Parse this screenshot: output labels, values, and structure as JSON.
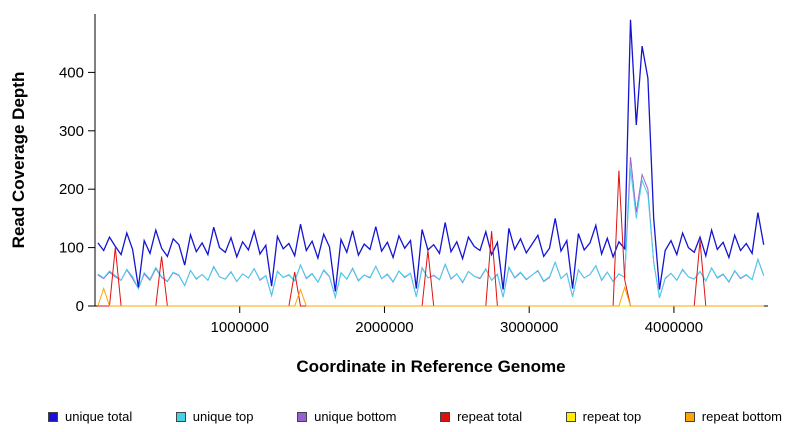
{
  "figure": {
    "xlabel": "Coordinate in Reference Genome",
    "ylabel": "Read Coverage Depth"
  },
  "chart_data": {
    "type": "line",
    "title": "",
    "xlabel": "Coordinate in Reference Genome",
    "ylabel": "Read Coverage Depth",
    "xlim": [
      0,
      4650000
    ],
    "ylim": [
      0,
      500
    ],
    "x_ticks": [
      1000000,
      2000000,
      3000000,
      4000000
    ],
    "x_tick_labels": [
      "1000000",
      "2000000",
      "3000000",
      "4000000"
    ],
    "y_ticks": [
      0,
      100,
      200,
      300,
      400
    ],
    "grid": false,
    "legend_position": "bottom",
    "x_start": 20000,
    "x_step": 40000,
    "background": "#ffffff",
    "series": [
      {
        "name": "repeat top",
        "color": "#FFEE00",
        "values": [
          0,
          0,
          0,
          0,
          0,
          0,
          0,
          0,
          0,
          0,
          0,
          0,
          0,
          0,
          0,
          0,
          0,
          0,
          0,
          0,
          0,
          0,
          0,
          0,
          0,
          0,
          0,
          0,
          0,
          0,
          0,
          0,
          0,
          0,
          0,
          0,
          0,
          0,
          0,
          0,
          0,
          0,
          0,
          0,
          0,
          0,
          0,
          0,
          0,
          0,
          0,
          0,
          0,
          0,
          0,
          0,
          0,
          0,
          0,
          0,
          0,
          0,
          0,
          0,
          0,
          0,
          0,
          0,
          0,
          0,
          0,
          0,
          0,
          0,
          0,
          0,
          0,
          0,
          0,
          0,
          0,
          0,
          0,
          0,
          0,
          0,
          0,
          0,
          0,
          0,
          0,
          0,
          0,
          0,
          0,
          0,
          0,
          0,
          0,
          0,
          0,
          0,
          0,
          0,
          0,
          0,
          0,
          0,
          0,
          0,
          0,
          0,
          0,
          0,
          0,
          0
        ]
      },
      {
        "name": "unique bottom",
        "color": "#9A5FD6",
        "values": [
          53,
          47,
          58,
          50,
          44,
          62,
          47,
          30,
          55,
          44,
          64,
          49,
          42,
          57,
          52,
          35,
          61,
          46,
          54,
          44,
          67,
          50,
          46,
          58,
          42,
          55,
          48,
          64,
          44,
          52,
          18,
          59,
          49,
          53,
          43,
          70,
          47,
          55,
          41,
          61,
          50,
          15,
          57,
          46,
          64,
          43,
          53,
          48,
          68,
          47,
          54,
          41,
          60,
          49,
          56,
          16,
          65,
          48,
          52,
          45,
          71,
          46,
          55,
          40,
          59,
          51,
          47,
          63,
          44,
          54,
          15,
          66,
          48,
          57,
          45,
          53,
          60,
          42,
          49,
          75,
          47,
          56,
          16,
          62,
          48,
          54,
          69,
          44,
          58,
          42,
          55,
          49,
          255,
          160,
          225,
          200,
          75,
          14,
          47,
          56,
          44,
          62,
          50,
          46,
          59,
          43,
          65,
          48,
          54,
          41,
          60,
          47,
          53,
          45,
          80,
          52
        ]
      },
      {
        "name": "unique top",
        "color": "#45D1E8",
        "values": [
          55,
          48,
          60,
          52,
          44,
          63,
          50,
          30,
          57,
          46,
          66,
          50,
          43,
          58,
          53,
          35,
          61,
          47,
          54,
          44,
          68,
          50,
          46,
          59,
          42,
          55,
          48,
          64,
          45,
          52,
          18,
          60,
          49,
          54,
          43,
          70,
          48,
          56,
          41,
          62,
          51,
          15,
          57,
          46,
          65,
          44,
          53,
          49,
          68,
          47,
          55,
          42,
          60,
          50,
          56,
          16,
          66,
          48,
          53,
          45,
          72,
          47,
          55,
          41,
          59,
          51,
          48,
          64,
          44,
          55,
          15,
          67,
          49,
          58,
          46,
          53,
          61,
          43,
          50,
          75,
          47,
          56,
          16,
          62,
          48,
          54,
          69,
          45,
          58,
          42,
          55,
          49,
          235,
          150,
          215,
          190,
          75,
          14,
          48,
          56,
          44,
          63,
          50,
          46,
          59,
          43,
          65,
          49,
          55,
          42,
          61,
          48,
          54,
          45,
          80,
          53
        ]
      },
      {
        "name": "unique total",
        "color": "#1414D2",
        "values": [
          108,
          95,
          118,
          102,
          88,
          125,
          97,
          32,
          112,
          90,
          130,
          99,
          85,
          115,
          105,
          70,
          122,
          93,
          108,
          88,
          135,
          100,
          92,
          117,
          84,
          110,
          96,
          128,
          89,
          104,
          34,
          119,
          98,
          107,
          86,
          140,
          95,
          111,
          82,
          123,
          101,
          25,
          114,
          92,
          129,
          87,
          106,
          97,
          136,
          94,
          109,
          83,
          120,
          99,
          112,
          30,
          131,
          96,
          105,
          90,
          143,
          93,
          110,
          81,
          118,
          102,
          95,
          127,
          88,
          109,
          28,
          133,
          97,
          115,
          91,
          106,
          121,
          85,
          99,
          150,
          94,
          112,
          30,
          124,
          96,
          108,
          138,
          89,
          116,
          84,
          110,
          98,
          490,
          310,
          445,
          390,
          150,
          28,
          95,
          112,
          88,
          125,
          100,
          92,
          118,
          86,
          130,
          97,
          109,
          83,
          121,
          95,
          107,
          90,
          160,
          105
        ]
      },
      {
        "name": "repeat total",
        "color": "#E01010",
        "values": [
          0,
          0,
          0,
          100,
          0,
          0,
          0,
          0,
          0,
          0,
          0,
          85,
          0,
          0,
          0,
          0,
          0,
          0,
          0,
          0,
          0,
          0,
          0,
          0,
          0,
          0,
          0,
          0,
          0,
          0,
          0,
          0,
          0,
          0,
          58,
          0,
          0,
          0,
          0,
          0,
          0,
          0,
          0,
          0,
          0,
          0,
          0,
          0,
          0,
          0,
          0,
          0,
          0,
          0,
          0,
          0,
          0,
          95,
          0,
          0,
          0,
          0,
          0,
          0,
          0,
          0,
          0,
          0,
          128,
          0,
          0,
          0,
          0,
          0,
          0,
          0,
          0,
          0,
          0,
          0,
          0,
          0,
          0,
          0,
          0,
          0,
          0,
          0,
          0,
          0,
          232,
          45,
          0,
          0,
          0,
          0,
          0,
          0,
          0,
          0,
          0,
          0,
          0,
          0,
          112,
          0,
          0,
          0,
          0,
          0,
          0,
          0,
          0,
          0,
          0,
          0
        ]
      },
      {
        "name": "repeat bottom",
        "color": "#FFA500",
        "values": [
          0,
          30,
          0,
          0,
          0,
          0,
          0,
          0,
          0,
          0,
          0,
          0,
          0,
          0,
          0,
          0,
          0,
          0,
          0,
          0,
          0,
          0,
          0,
          0,
          0,
          0,
          0,
          0,
          0,
          0,
          0,
          0,
          0,
          0,
          0,
          28,
          0,
          0,
          0,
          0,
          0,
          0,
          0,
          0,
          0,
          0,
          0,
          0,
          0,
          0,
          0,
          0,
          0,
          0,
          0,
          0,
          0,
          0,
          0,
          0,
          0,
          0,
          0,
          0,
          0,
          0,
          0,
          0,
          0,
          0,
          0,
          0,
          0,
          0,
          0,
          0,
          0,
          0,
          0,
          0,
          0,
          0,
          0,
          0,
          0,
          0,
          0,
          0,
          0,
          0,
          0,
          32,
          0,
          0,
          0,
          0,
          0,
          0,
          0,
          0,
          0,
          0,
          0,
          0,
          0,
          0,
          0,
          0,
          0,
          0,
          0,
          0,
          0,
          0,
          0,
          0
        ]
      }
    ],
    "legend": [
      {
        "label": "unique total",
        "color": "#1414D2"
      },
      {
        "label": "unique top",
        "color": "#45D1E8"
      },
      {
        "label": "unique bottom",
        "color": "#9A5FD6"
      },
      {
        "label": "repeat total",
        "color": "#E01010"
      },
      {
        "label": "repeat top",
        "color": "#FFEE00"
      },
      {
        "label": "repeat bottom",
        "color": "#FFA500"
      }
    ]
  }
}
